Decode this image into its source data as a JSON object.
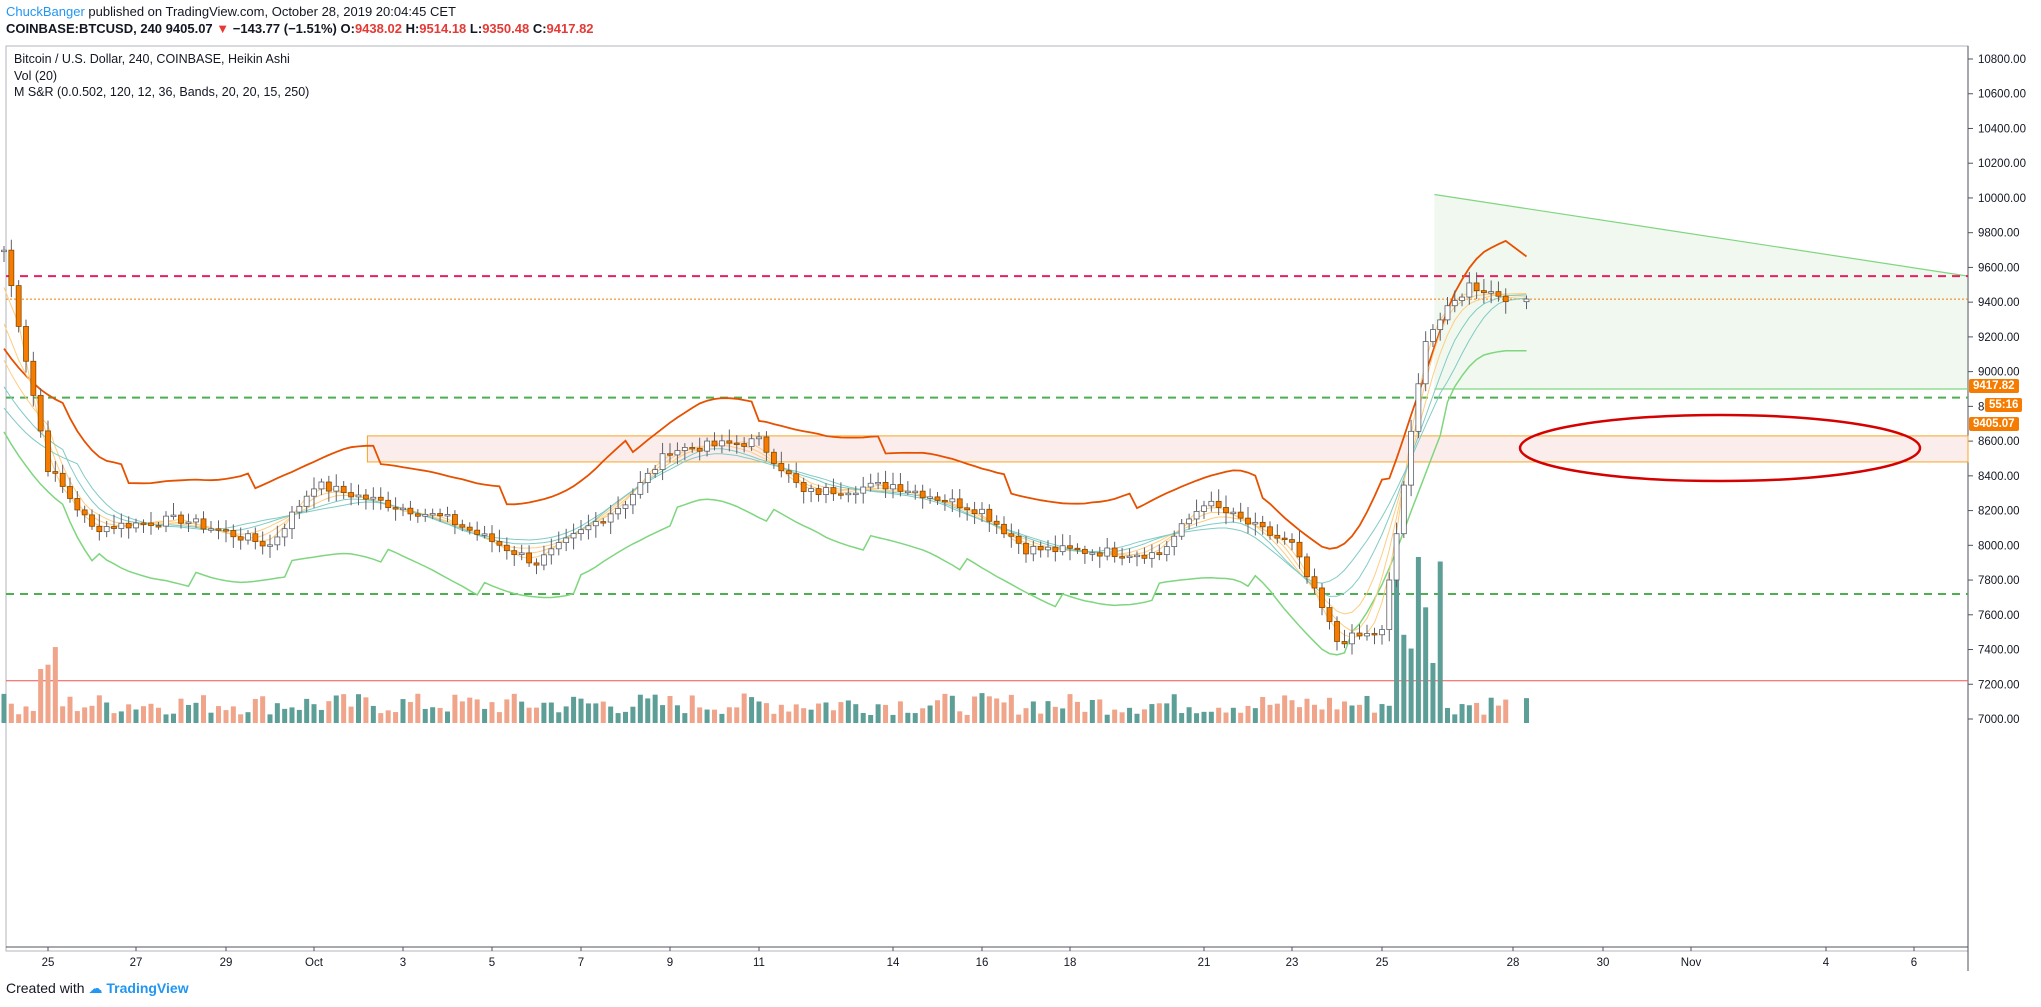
{
  "header": {
    "author": "ChuckBanger",
    "published_text": " published on TradingView.com, October 28, 2019 20:04:45 CET",
    "symbol": "COINBASE:BTCUSD, 240",
    "last": "9405.07",
    "change_arrow": "▼",
    "change": "−143.77 (−1.51%)",
    "o_label": "O:",
    "o_value": "9438.02",
    "h_label": "H:",
    "h_value": "9514.18",
    "l_label": "L:",
    "l_value": "9350.48",
    "c_label": "C:",
    "c_value": "9417.82"
  },
  "legend": {
    "title": "Bitcoin / U.S. Dollar, 240, COINBASE, Heikin Ashi",
    "vol": "Vol (20)",
    "indicator": "M S&R (0.0.502, 120, 12, 36, Bands, 20, 20, 15, 250)"
  },
  "price_tags": {
    "close": "9417.82",
    "countdown": "55:16",
    "last": "9405.07"
  },
  "footer": {
    "created_with": "Created with",
    "brand": "TradingView"
  },
  "colors": {
    "up": "#26a69a",
    "down": "#f57c00",
    "vol_up": "#5d9e97",
    "vol_down": "#f0a48a",
    "upper_band": "#e65100",
    "lower_band": "#7fd67f",
    "fib_red": "#e91e63",
    "support_green": "#4caf50",
    "annotation_red": "#d50000"
  },
  "chart_data": {
    "type": "candlestick",
    "style": "Heikin Ashi",
    "ylim": [
      7000,
      10800
    ],
    "y_ticks": [
      7000,
      7200,
      7400,
      7600,
      7800,
      8000,
      8200,
      8400,
      8600,
      8800,
      9000,
      9200,
      9400,
      9600,
      9800,
      10000,
      10200,
      10400,
      10600,
      10800
    ],
    "x_ticks": [
      "25",
      "27",
      "29",
      "Oct",
      "3",
      "5",
      "7",
      "9",
      "11",
      "14",
      "16",
      "18",
      "21",
      "23",
      "25",
      "28",
      "30",
      "Nov",
      "4",
      "6"
    ],
    "bars_per_day": 6,
    "key_closes": [
      {
        "date": "Sep 24",
        "value": 9700
      },
      {
        "date": "Sep 25",
        "value": 8450
      },
      {
        "date": "Sep 26",
        "value": 8100
      },
      {
        "date": "Sep 28",
        "value": 8150
      },
      {
        "date": "Sep 30",
        "value": 8000
      },
      {
        "date": "Oct 1",
        "value": 8350
      },
      {
        "date": "Oct 4",
        "value": 8150
      },
      {
        "date": "Oct 6",
        "value": 7900
      },
      {
        "date": "Oct 8",
        "value": 8250
      },
      {
        "date": "Oct 9",
        "value": 8550
      },
      {
        "date": "Oct 11",
        "value": 8600
      },
      {
        "date": "Oct 12",
        "value": 8300
      },
      {
        "date": "Oct 14",
        "value": 8350
      },
      {
        "date": "Oct 16",
        "value": 8200
      },
      {
        "date": "Oct 17",
        "value": 7980
      },
      {
        "date": "Oct 20",
        "value": 7950
      },
      {
        "date": "Oct 21",
        "value": 8250
      },
      {
        "date": "Oct 23",
        "value": 8000
      },
      {
        "date": "Oct 24",
        "value": 7450
      },
      {
        "date": "Oct 25",
        "value": 7500
      },
      {
        "date": "Oct 26",
        "value": 9200
      },
      {
        "date": "Oct 27",
        "value": 9500
      },
      {
        "date": "Oct 28",
        "value": 9417.82
      }
    ],
    "horizontal_levels": [
      {
        "value": 9550,
        "style": "dashed",
        "color": "#e91e63"
      },
      {
        "value": 8850,
        "style": "dashed",
        "color": "#4caf50"
      },
      {
        "value": 7720,
        "style": "dashed",
        "color": "#4caf50"
      },
      {
        "value": 7220,
        "style": "solid",
        "color": "#ef5350"
      }
    ],
    "zone": {
      "from": 8480,
      "to": 8630
    },
    "triangle": {
      "top_start": 10020,
      "top_end": 9550,
      "bottom": 8900
    },
    "volume_peak": "Oct 25"
  }
}
